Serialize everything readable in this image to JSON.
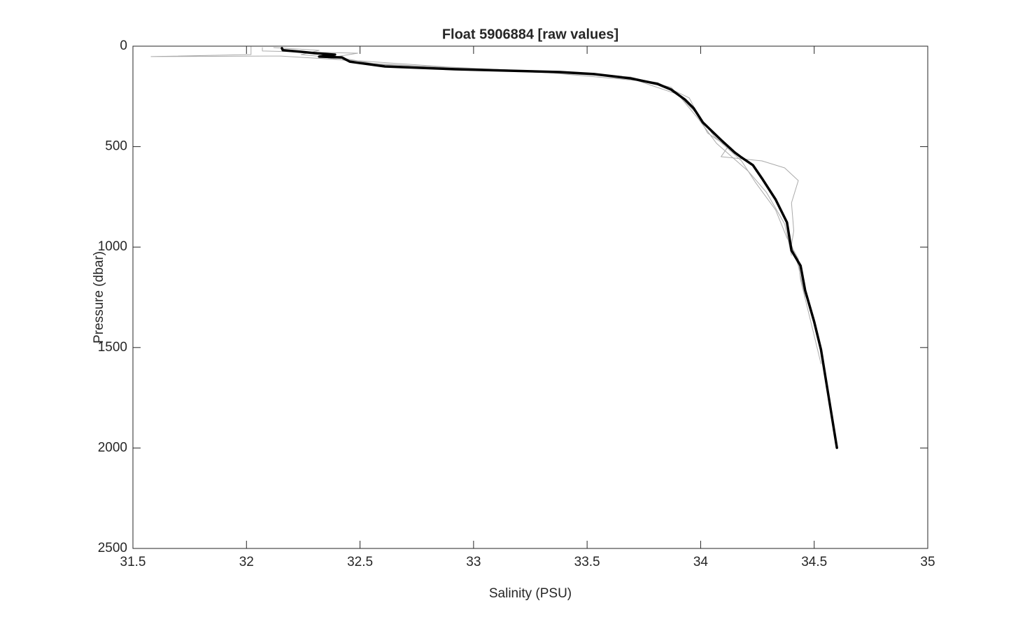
{
  "chart_data": {
    "type": "line",
    "title": "Float 5906884  [raw values]",
    "x_label": "Salinity (PSU)",
    "y_label": "Pressure (dbar)",
    "xlim": [
      31.5,
      35
    ],
    "xticks": [
      31.5,
      32,
      32.5,
      33,
      33.5,
      34,
      34.5,
      35
    ],
    "ylim": [
      0,
      2500
    ],
    "yticks": [
      0,
      500,
      1000,
      1500,
      2000,
      2500
    ],
    "y_inverted": true,
    "series": [
      {
        "color": "#aaaaaa",
        "linewidth": 1,
        "x": [
          32.02,
          32.02,
          31.58,
          32.15,
          32.455,
          32.89,
          33.53,
          33.81,
          33.95,
          34.03,
          34.12,
          34.09,
          34.27,
          34.37,
          34.43,
          34.4,
          34.41,
          34.4,
          34.43,
          34.46
        ],
        "values": [
          3,
          42,
          52,
          49,
          70,
          104,
          139,
          181,
          258,
          432,
          501,
          550,
          571,
          606,
          669,
          780,
          919,
          989,
          1093,
          1250
        ]
      },
      {
        "color": "#aaaaaa",
        "linewidth": 1,
        "x": [
          32.07,
          32.07,
          32.49,
          32.36,
          32.52,
          33.07,
          33.69,
          33.87,
          33.99,
          34.06,
          34.18,
          34.24,
          34.33,
          34.38,
          34.43,
          34.44,
          34.47,
          34.5,
          34.53
        ],
        "values": [
          7,
          24,
          35,
          59,
          84,
          118,
          153,
          205,
          345,
          449,
          571,
          676,
          815,
          954,
          1059,
          1163,
          1302,
          1441,
          1581
        ]
      },
      {
        "color": "#aaaaaa",
        "linewidth": 1,
        "x": [
          32.12,
          32.32,
          32.24,
          32.44,
          32.58,
          33.23,
          33.72,
          33.9,
          33.99,
          34.07,
          34.21,
          34.29,
          34.37,
          34.4
        ],
        "values": [
          7,
          21,
          42,
          63,
          91,
          122,
          171,
          240,
          362,
          484,
          623,
          728,
          885,
          1041
        ]
      },
      {
        "color": "#000000",
        "linewidth": 3.5,
        "x": [
          32.156,
          32.16,
          32.24,
          32.3,
          32.39,
          32.32,
          32.42,
          32.455,
          32.52,
          32.61,
          32.92,
          33.38,
          33.53,
          33.69,
          33.81,
          33.87,
          33.93,
          33.97,
          34.01,
          34.09,
          34.15,
          34.18,
          34.23,
          34.27,
          34.33,
          34.38,
          34.4,
          34.44,
          34.46,
          34.5,
          34.53,
          34.56,
          34.6
        ],
        "values": [
          10,
          20,
          28,
          35,
          42,
          52,
          56,
          77,
          87,
          101,
          115,
          129,
          139,
          160,
          188,
          216,
          265,
          310,
          380,
          467,
          529,
          554,
          592,
          658,
          763,
          877,
          1017,
          1093,
          1215,
          1372,
          1511,
          1720,
          1999
        ]
      }
    ]
  }
}
